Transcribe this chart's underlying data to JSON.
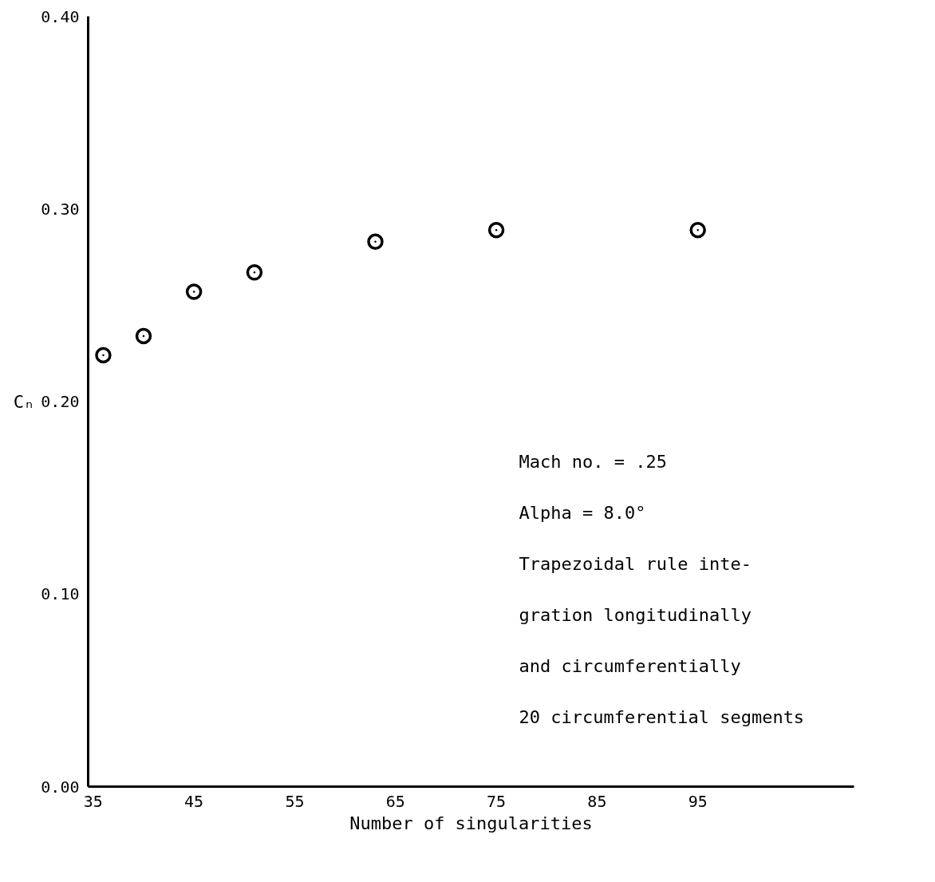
{
  "chart_data": {
    "type": "scatter",
    "xlabel": "Number of singularities",
    "ylabel": "Cₙ",
    "x": [
      36,
      40,
      45,
      51,
      63,
      75,
      95
    ],
    "series": [
      {
        "color": "#000000",
        "values": [
          0.224,
          0.234,
          0.257,
          0.267,
          0.283,
          0.289,
          0.289
        ]
      }
    ],
    "marker": "circle",
    "xlim": [
      34.5,
      110.5
    ],
    "xticks": [
      35,
      45,
      55,
      65,
      75,
      85,
      95
    ],
    "ylim": [
      0,
      0.4
    ],
    "yticks": [
      {
        "value": 0,
        "label": "0.00"
      },
      {
        "value": 0.1,
        "label": "0.10"
      },
      {
        "value": 0.2,
        "label": "0.20"
      },
      {
        "value": 0.3,
        "label": "0.30"
      },
      {
        "value": 0.4,
        "label": "0.40"
      }
    ],
    "grid": false,
    "annotations": [
      "Mach no. = .25",
      "Alpha = 8.0°",
      "Trapezoidal rule inte-",
      "gration longitudinally",
      "and circumferentially",
      "20 circumferential segments"
    ]
  }
}
